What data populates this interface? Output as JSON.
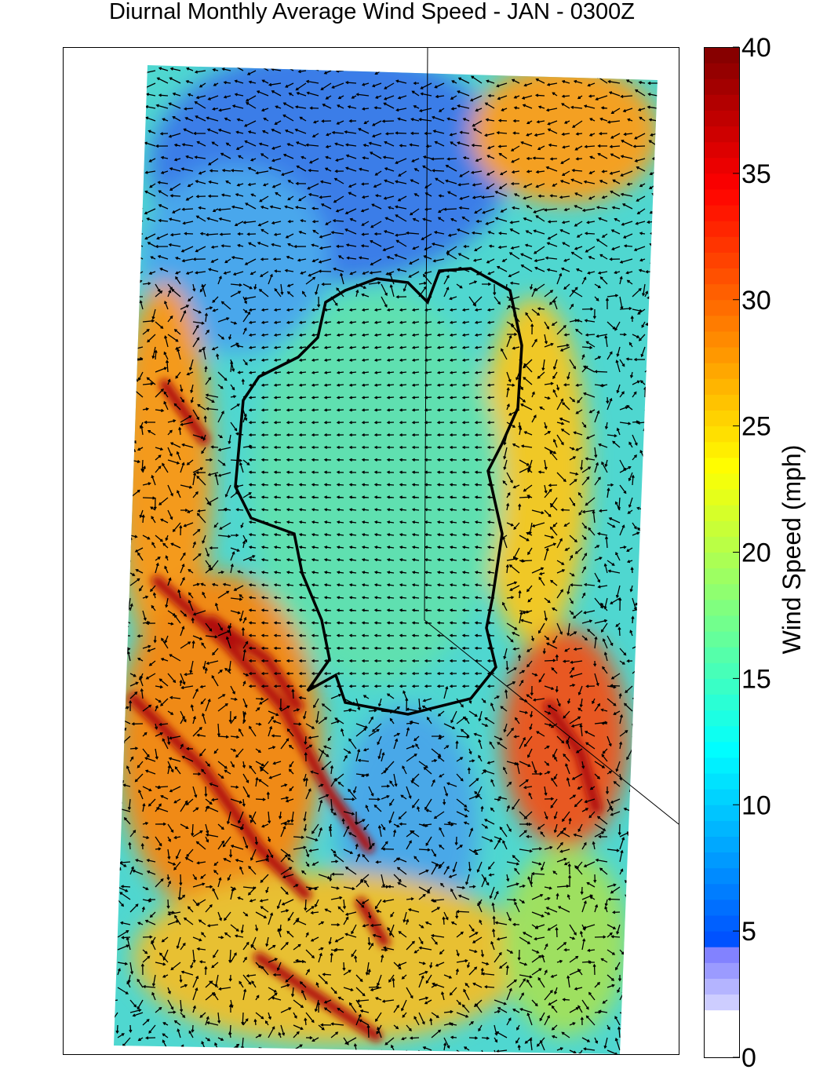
{
  "title": "Diurnal Monthly Average Wind Speed - JAN - 0300Z",
  "colorbar": {
    "label": "Wind Speed (mph)",
    "lim": [
      0,
      40
    ],
    "ticks": [
      0,
      5,
      10,
      15,
      20,
      25,
      30,
      35,
      40
    ]
  }
}
